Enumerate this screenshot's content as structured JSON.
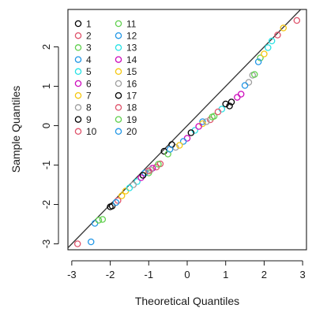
{
  "chart_data": {
    "type": "scatter",
    "subtype": "qq-plot",
    "title": "",
    "xlabel": "Theoretical Quantiles",
    "ylabel": "Sample Quantiles",
    "xlim": [
      -3.1,
      3.1
    ],
    "ylim": [
      -3.15,
      2.95
    ],
    "x_ticks": [
      -3,
      -2,
      -1,
      0,
      1,
      2,
      3
    ],
    "y_ticks": [
      -3,
      -2,
      -1,
      0,
      1,
      2
    ],
    "grid": false,
    "legend_position": "top-left",
    "reference_line": {
      "slope": 1,
      "intercept": 0,
      "color": "#333333"
    },
    "series": [
      {
        "name": "1",
        "color": "#000000",
        "points": [
          [
            -2.0,
            -2.06
          ],
          [
            -0.6,
            -0.65
          ],
          [
            1.0,
            0.55
          ]
        ]
      },
      {
        "name": "2",
        "color": "#df536b",
        "points": [
          [
            -1.8,
            -1.9
          ],
          [
            -0.8,
            -1.05
          ],
          [
            0.6,
            0.15
          ]
        ]
      },
      {
        "name": "3",
        "color": "#61d04f",
        "points": [
          [
            -2.2,
            -2.38
          ],
          [
            -1.0,
            -1.2
          ],
          [
            1.9,
            1.72
          ]
        ]
      },
      {
        "name": "4",
        "color": "#2297e6",
        "points": [
          [
            -2.4,
            -2.48
          ],
          [
            -1.1,
            -1.2
          ],
          [
            0.4,
            0.1
          ]
        ]
      },
      {
        "name": "5",
        "color": "#28e2e5",
        "points": [
          [
            -1.3,
            -1.42
          ],
          [
            0.9,
            0.42
          ],
          [
            2.2,
            2.15
          ]
        ]
      },
      {
        "name": "6",
        "color": "#cd0bbc",
        "points": [
          [
            -0.9,
            -1.08
          ],
          [
            0.0,
            -0.32
          ],
          [
            1.3,
            0.72
          ]
        ]
      },
      {
        "name": "7",
        "color": "#f5c710",
        "points": [
          [
            -1.6,
            -1.66
          ],
          [
            0.4,
            0.05
          ],
          [
            2.5,
            2.48
          ]
        ]
      },
      {
        "name": "8",
        "color": "#9e9e9e",
        "points": [
          [
            -1.4,
            -1.5
          ],
          [
            -0.3,
            -0.55
          ],
          [
            1.6,
            1.1
          ]
        ]
      },
      {
        "name": "9",
        "color": "#000000",
        "points": [
          [
            -1.95,
            -2.04
          ],
          [
            -0.4,
            -0.48
          ],
          [
            1.1,
            0.5
          ]
        ]
      },
      {
        "name": "10",
        "color": "#df536b",
        "points": [
          [
            -2.85,
            -3.0
          ],
          [
            -0.7,
            -0.97
          ],
          [
            2.85,
            2.67
          ]
        ]
      },
      {
        "name": "11",
        "color": "#61d04f",
        "points": [
          [
            -2.3,
            -2.4
          ],
          [
            -0.5,
            -0.72
          ],
          [
            0.7,
            0.24
          ]
        ]
      },
      {
        "name": "12",
        "color": "#2297e6",
        "points": [
          [
            -2.5,
            -2.95
          ],
          [
            -0.1,
            -0.4
          ],
          [
            1.5,
            1.02
          ]
        ]
      },
      {
        "name": "13",
        "color": "#28e2e5",
        "points": [
          [
            -1.5,
            -1.58
          ],
          [
            0.2,
            -0.12
          ],
          [
            2.1,
            1.98
          ]
        ]
      },
      {
        "name": "14",
        "color": "#cd0bbc",
        "points": [
          [
            -1.2,
            -1.32
          ],
          [
            0.3,
            -0.02
          ],
          [
            1.4,
            0.8
          ]
        ]
      },
      {
        "name": "15",
        "color": "#f5c710",
        "points": [
          [
            -1.7,
            -1.78
          ],
          [
            -0.2,
            -0.5
          ],
          [
            2.0,
            1.82
          ]
        ]
      },
      {
        "name": "16",
        "color": "#9e9e9e",
        "points": [
          [
            -0.95,
            -1.12
          ],
          [
            0.5,
            0.1
          ],
          [
            1.7,
            1.28
          ]
        ]
      },
      {
        "name": "17",
        "color": "#000000",
        "points": [
          [
            -1.15,
            -1.26
          ],
          [
            0.1,
            -0.18
          ],
          [
            1.15,
            0.6
          ]
        ]
      },
      {
        "name": "18",
        "color": "#df536b",
        "points": [
          [
            -1.0,
            -1.15
          ],
          [
            0.8,
            0.35
          ],
          [
            2.35,
            2.3
          ]
        ]
      },
      {
        "name": "19",
        "color": "#61d04f",
        "points": [
          [
            -0.75,
            -0.98
          ],
          [
            0.65,
            0.22
          ],
          [
            1.75,
            1.3
          ]
        ]
      },
      {
        "name": "20",
        "color": "#2297e6",
        "points": [
          [
            -1.85,
            -1.95
          ],
          [
            -0.45,
            -0.6
          ],
          [
            1.85,
            1.62
          ]
        ]
      }
    ]
  }
}
